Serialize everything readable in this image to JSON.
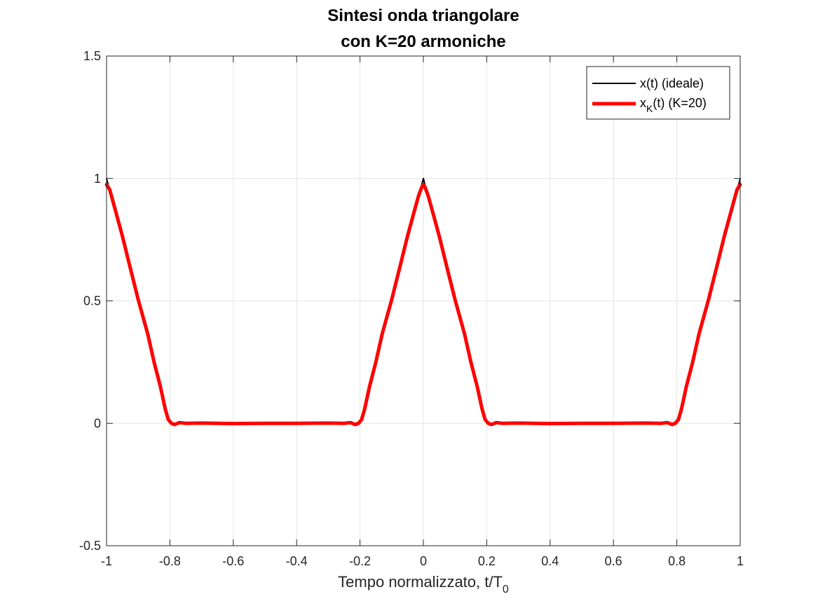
{
  "chart_data": {
    "type": "line",
    "title": [
      "Sintesi onda triangolare",
      "con K=20 armoniche"
    ],
    "xlabel": {
      "text": "Tempo normalizzato, t/T",
      "subscript": "0"
    },
    "ylabel": "",
    "xlim": [
      -1,
      1
    ],
    "ylim": [
      -0.5,
      1.5
    ],
    "xticks": [
      -1,
      -0.8,
      -0.6,
      -0.4,
      -0.2,
      0,
      0.2,
      0.4,
      0.6,
      0.8,
      1
    ],
    "xtick_labels": [
      "-1",
      "-0.8",
      "-0.6",
      "-0.4",
      "-0.2",
      "0",
      "0.2",
      "0.4",
      "0.6",
      "0.8",
      "1"
    ],
    "yticks": [
      -0.5,
      0,
      0.5,
      1,
      1.5
    ],
    "ytick_labels": [
      "-0.5",
      "0",
      "0.5",
      "1",
      "1.5"
    ],
    "grid": true,
    "legend_position": "top-right",
    "series": [
      {
        "name": "x(t) (ideale)",
        "color": "#000000",
        "x": [
          -1,
          -0.8,
          -0.2,
          0,
          0.2,
          0.8,
          1
        ],
        "y": [
          1,
          0,
          0,
          1,
          0,
          0,
          1
        ]
      },
      {
        "name": "x_K(t) (K=20)",
        "legend": {
          "pre": "x",
          "sub": "K",
          "post": "(t) (K=20)"
        },
        "color": "#ff0000",
        "x": [
          -1,
          -0.99,
          -0.97,
          -0.95,
          -0.93,
          -0.9,
          -0.87,
          -0.85,
          -0.83,
          -0.815,
          -0.805,
          -0.795,
          -0.785,
          -0.77,
          -0.75,
          -0.7,
          -0.6,
          -0.5,
          -0.4,
          -0.3,
          -0.25,
          -0.23,
          -0.215,
          -0.205,
          -0.195,
          -0.185,
          -0.17,
          -0.15,
          -0.13,
          -0.1,
          -0.07,
          -0.05,
          -0.03,
          -0.015,
          -0.005,
          0,
          0.005,
          0.015,
          0.03,
          0.05,
          0.07,
          0.1,
          0.13,
          0.15,
          0.17,
          0.185,
          0.195,
          0.205,
          0.215,
          0.23,
          0.25,
          0.3,
          0.4,
          0.5,
          0.6,
          0.7,
          0.75,
          0.77,
          0.785,
          0.795,
          0.805,
          0.815,
          0.83,
          0.85,
          0.87,
          0.9,
          0.93,
          0.95,
          0.97,
          0.99,
          1
        ],
        "y": [
          0.975,
          0.955,
          0.86,
          0.765,
          0.66,
          0.505,
          0.365,
          0.25,
          0.15,
          0.06,
          0.015,
          0.0,
          -0.005,
          0.003,
          0.0,
          0.001,
          -0.001,
          0.0,
          0.0,
          0.001,
          0.0,
          0.003,
          -0.005,
          0.0,
          0.015,
          0.06,
          0.15,
          0.25,
          0.365,
          0.505,
          0.66,
          0.765,
          0.86,
          0.93,
          0.965,
          0.975,
          0.965,
          0.93,
          0.86,
          0.765,
          0.66,
          0.505,
          0.365,
          0.25,
          0.15,
          0.06,
          0.015,
          0.0,
          -0.005,
          0.003,
          0.0,
          0.001,
          -0.001,
          0.0,
          0.0,
          0.001,
          0.0,
          0.003,
          -0.005,
          0.0,
          0.015,
          0.06,
          0.15,
          0.25,
          0.365,
          0.505,
          0.66,
          0.765,
          0.86,
          0.955,
          0.975
        ]
      }
    ]
  }
}
